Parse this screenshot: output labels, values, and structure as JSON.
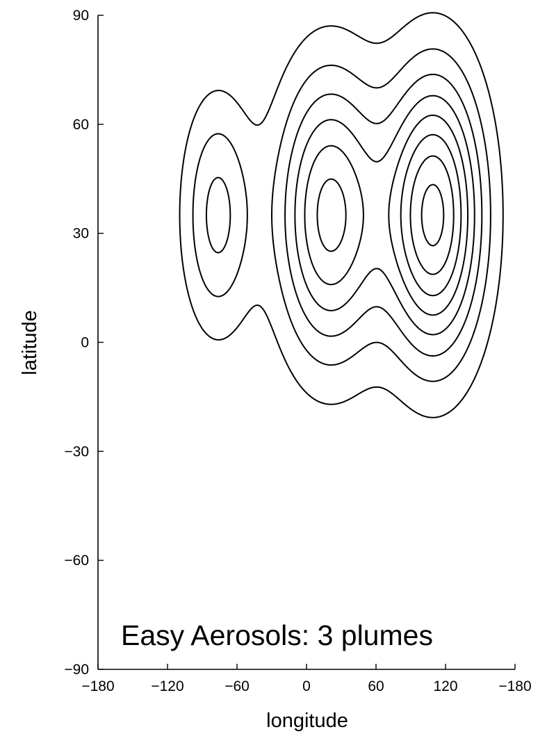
{
  "chart_data": {
    "type": "contour",
    "title": "",
    "annotation": "Easy Aerosols: 3 plumes",
    "xlabel": "longitude",
    "ylabel": "latitude",
    "xlim": [
      -180,
      180
    ],
    "ylim": [
      -90,
      90
    ],
    "xticks": [
      -180,
      -120,
      -60,
      0,
      60,
      120,
      180
    ],
    "xtick_labels": [
      "−180",
      "−120",
      "−60",
      "0",
      "60",
      "120",
      "−180"
    ],
    "yticks": [
      -90,
      -60,
      -30,
      0,
      30,
      60,
      90
    ],
    "ytick_labels": [
      "−90",
      "−60",
      "−30",
      "0",
      "30",
      "60",
      "90"
    ],
    "grid": false,
    "plumes": [
      {
        "center_lon": -77,
        "center_lat": 35,
        "sigma_lon": 21,
        "sigma_lat": 22,
        "amplitude": 3.3
      },
      {
        "center_lon": 20,
        "center_lat": 35,
        "sigma_lon": 31,
        "sigma_lat": 27,
        "amplitude": 6.35
      },
      {
        "center_lon": 110,
        "center_lat": 35,
        "sigma_lon": 29,
        "sigma_lat": 27,
        "amplitude": 8.3
      }
    ],
    "contour_levels": [
      1,
      2,
      3,
      4,
      5,
      6,
      7,
      8
    ]
  }
}
